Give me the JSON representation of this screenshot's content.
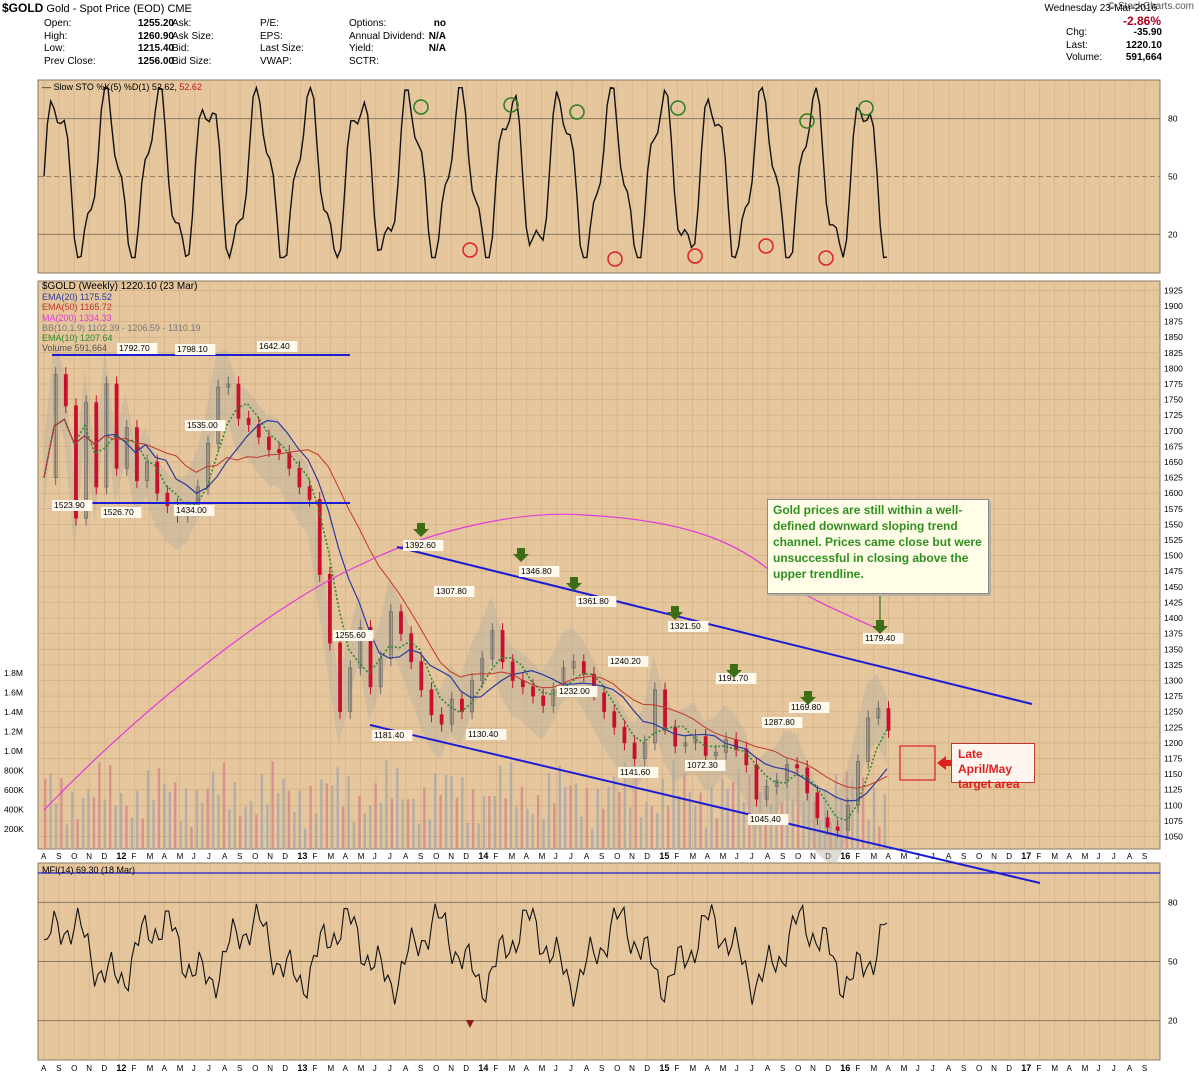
{
  "header": {
    "symbol": "$GOLD",
    "name": "Gold - Spot Price (EOD)",
    "exchange": "CME",
    "source": "© StockCharts.com",
    "date": "Wednesday 23-Mar-2016"
  },
  "quote": {
    "open_label": "Open:",
    "open": "1255.20",
    "high_label": "High:",
    "high": "1260.90",
    "low_label": "Low:",
    "low": "1215.40",
    "prev_label": "Prev Close:",
    "prev": "1256.00",
    "ask_label": "Ask:",
    "asksize_label": "Ask Size:",
    "bid_label": "Bid:",
    "bidsize_label": "Bid Size:",
    "pe_label": "P/E:",
    "eps_label": "EPS:",
    "lastsize_label": "Last Size:",
    "vwap_label": "VWAP:",
    "options_label": "Options:",
    "options": "no",
    "dividend_label": "Annual Dividend:",
    "dividend": "N/A",
    "yield_label": "Yield:",
    "yield": "N/A",
    "sctr_label": "SCTR:",
    "change_pct": "-2.86%",
    "chg_label": "Chg:",
    "chg": "-35.90",
    "last_label": "Last:",
    "last": "1220.10",
    "volume_label": "Volume:",
    "volume": "591,664"
  },
  "legend": {
    "sto": "Slow STO %K(5) %D(1) 52.62,",
    "sto_val": "52.62",
    "price_title": "$GOLD (Weekly) 1220.10 (23 Mar)",
    "ema20": "EMA(20) 1175.52",
    "ema50": "EMA(50) 1165.72",
    "ma200": "MA(200) 1334.33",
    "bb": "BB(10,1.9) 1102.39 - 1206.59 - 1310.19",
    "ema10": "EMA(10) 1207.64",
    "volume": "Volume 591,664",
    "mfi": "MFI(14) 69.30 (18 Mar)"
  },
  "annotations": {
    "callout": "Gold prices are still within a well-defined downward sloping trend channel. Prices came close but were unsuccessful in closing above the upper trendline.",
    "target": "Late April/May target area"
  },
  "colors": {
    "panel_bg": "#e5c69d",
    "ema20": "#2b3a9e",
    "ema50": "#c0392b",
    "ma200": "#e23bd8",
    "ema10": "#2e8b2e",
    "trendline": "#1c1cd4",
    "candle_up": "#6a6a6a",
    "candle_down": "#c8102e",
    "arrow": "#3d6e15"
  },
  "chart_data": {
    "type": "candlestick",
    "title": "$GOLD (Weekly) 1220.10 (23 Mar)",
    "y_ticks": [
      1050,
      1075,
      1100,
      1125,
      1150,
      1175,
      1200,
      1225,
      1250,
      1275,
      1300,
      1325,
      1350,
      1375,
      1400,
      1425,
      1450,
      1475,
      1500,
      1525,
      1550,
      1575,
      1600,
      1625,
      1650,
      1675,
      1700,
      1725,
      1750,
      1775,
      1800,
      1825,
      1850,
      1875,
      1900,
      1925
    ],
    "ylim": [
      1030,
      1940
    ],
    "volume_ticks": [
      "200K",
      "400K",
      "600K",
      "800K",
      "1.0M",
      "1.2M",
      "1.4M",
      "1.6M",
      "1.8M"
    ],
    "oscillator_ticks": [
      "20",
      "50",
      "80"
    ],
    "x_ticks": [
      "A",
      "S",
      "O",
      "N",
      "D",
      "12",
      "F",
      "M",
      "A",
      "M",
      "J",
      "J",
      "A",
      "S",
      "O",
      "N",
      "D",
      "13",
      "F",
      "M",
      "A",
      "M",
      "J",
      "J",
      "A",
      "S",
      "O",
      "N",
      "D",
      "14",
      "F",
      "M",
      "A",
      "M",
      "J",
      "J",
      "A",
      "S",
      "O",
      "N",
      "D",
      "15",
      "F",
      "M",
      "A",
      "M",
      "J",
      "J",
      "A",
      "S",
      "O",
      "N",
      "D",
      "16",
      "F",
      "M",
      "A",
      "M",
      "J",
      "J",
      "A",
      "S",
      "O",
      "N",
      "D",
      "17",
      "F",
      "M",
      "A",
      "M",
      "J",
      "J",
      "A",
      "S"
    ],
    "price_path": [
      [
        0,
        1625
      ],
      [
        3,
        1790
      ],
      [
        6,
        1740
      ],
      [
        9,
        1560
      ],
      [
        12,
        1745
      ],
      [
        15,
        1610
      ],
      [
        18,
        1775
      ],
      [
        21,
        1640
      ],
      [
        24,
        1705
      ],
      [
        27,
        1620
      ],
      [
        30,
        1650
      ],
      [
        33,
        1600
      ],
      [
        36,
        1580
      ],
      [
        39,
        1565
      ],
      [
        42,
        1575
      ],
      [
        45,
        1610
      ],
      [
        48,
        1680
      ],
      [
        51,
        1770
      ],
      [
        54,
        1775
      ],
      [
        57,
        1720
      ],
      [
        60,
        1710
      ],
      [
        63,
        1690
      ],
      [
        66,
        1670
      ],
      [
        69,
        1665
      ],
      [
        72,
        1640
      ],
      [
        75,
        1610
      ],
      [
        78,
        1590
      ],
      [
        81,
        1470
      ],
      [
        84,
        1360
      ],
      [
        87,
        1250
      ],
      [
        90,
        1320
      ],
      [
        93,
        1385
      ],
      [
        96,
        1290
      ],
      [
        99,
        1335
      ],
      [
        102,
        1410
      ],
      [
        105,
        1375
      ],
      [
        108,
        1330
      ],
      [
        111,
        1285
      ],
      [
        114,
        1245
      ],
      [
        117,
        1230
      ],
      [
        120,
        1270
      ],
      [
        123,
        1250
      ],
      [
        126,
        1300
      ],
      [
        129,
        1335
      ],
      [
        132,
        1380
      ],
      [
        135,
        1330
      ],
      [
        138,
        1300
      ],
      [
        141,
        1290
      ],
      [
        144,
        1275
      ],
      [
        147,
        1260
      ],
      [
        150,
        1285
      ],
      [
        153,
        1320
      ],
      [
        156,
        1330
      ],
      [
        159,
        1310
      ],
      [
        162,
        1280
      ],
      [
        165,
        1250
      ],
      [
        168,
        1225
      ],
      [
        171,
        1200
      ],
      [
        174,
        1175
      ],
      [
        177,
        1200
      ],
      [
        180,
        1285
      ],
      [
        183,
        1225
      ],
      [
        186,
        1195
      ],
      [
        189,
        1200
      ],
      [
        192,
        1210
      ],
      [
        195,
        1180
      ],
      [
        198,
        1185
      ],
      [
        201,
        1205
      ],
      [
        204,
        1190
      ],
      [
        207,
        1165
      ],
      [
        210,
        1110
      ],
      [
        213,
        1130
      ],
      [
        216,
        1140
      ],
      [
        219,
        1165
      ],
      [
        222,
        1160
      ],
      [
        225,
        1120
      ],
      [
        228,
        1080
      ],
      [
        231,
        1065
      ],
      [
        234,
        1060
      ],
      [
        237,
        1100
      ],
      [
        240,
        1170
      ],
      [
        243,
        1240
      ],
      [
        246,
        1255
      ],
      [
        249,
        1220
      ]
    ],
    "levels": [
      "1798.10",
      "1792.70",
      "1642.40",
      "1535.00",
      "1523.90",
      "1526.70",
      "1434.00",
      "1392.60",
      "1346.80",
      "1361.80",
      "1307.80",
      "1321.50",
      "1255.60",
      "1240.20",
      "1232.00",
      "1191.70",
      "1169.80",
      "1287.80",
      "1179.40",
      "1181.40",
      "1130.40",
      "1141.60",
      "1072.30",
      "1045.40"
    ]
  }
}
